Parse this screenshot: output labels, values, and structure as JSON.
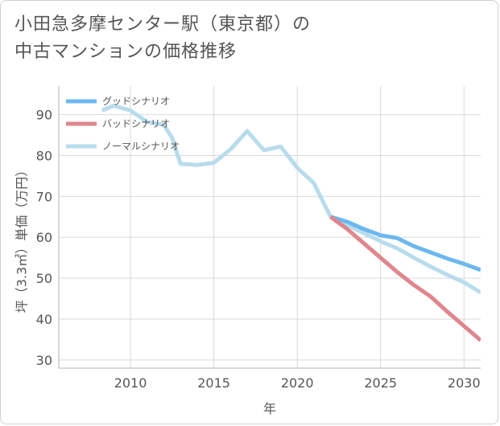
{
  "title_line1": "小田急多摩センター駅（東京都）の",
  "title_line2": "中古マンションの価格推移",
  "chart_data": {
    "type": "line",
    "title": "小田急多摩センター駅（東京都）の中古マンションの価格推移",
    "xlabel": "年",
    "ylabel": "坪（3.3㎡）単価（万円）",
    "xlim": [
      2005.7,
      2031
    ],
    "ylim": [
      28,
      97
    ],
    "xticks": [
      2010,
      2015,
      2020,
      2025,
      2030
    ],
    "yticks": [
      30,
      40,
      50,
      60,
      70,
      80,
      90
    ],
    "grid": true,
    "legend_position": "top-left",
    "series": [
      {
        "name": "グッドシナリオ",
        "color": "#6cb8ef",
        "x": [
          2022,
          2023,
          2024,
          2025,
          2026,
          2027,
          2028,
          2029,
          2030,
          2031
        ],
        "y": [
          65.0,
          63.8,
          62.0,
          60.5,
          59.8,
          57.8,
          56.3,
          54.8,
          53.5,
          52.0
        ]
      },
      {
        "name": "バッドシナリオ",
        "color": "#e0868e",
        "x": [
          2022,
          2023,
          2024,
          2025,
          2026,
          2027,
          2028,
          2029,
          2030,
          2031
        ],
        "y": [
          65.0,
          62.0,
          58.5,
          55.0,
          51.5,
          48.3,
          45.5,
          41.8,
          38.3,
          34.8
        ]
      },
      {
        "name": "ノーマルシナリオ",
        "color": "#b8dcec",
        "x": [
          2008.3,
          2009,
          2010,
          2011,
          2012,
          2012.5,
          2013,
          2014,
          2015,
          2016,
          2017,
          2018,
          2019,
          2020,
          2021,
          2022,
          2023,
          2024,
          2025,
          2026,
          2027,
          2028,
          2029,
          2030,
          2031
        ],
        "y": [
          91.0,
          92.2,
          91.0,
          88.2,
          87.5,
          84.3,
          78.0,
          77.7,
          78.2,
          81.5,
          86.0,
          81.3,
          82.2,
          77.0,
          73.2,
          65.0,
          63.0,
          61.0,
          59.0,
          57.3,
          55.0,
          52.8,
          50.8,
          49.0,
          46.5
        ]
      }
    ]
  }
}
